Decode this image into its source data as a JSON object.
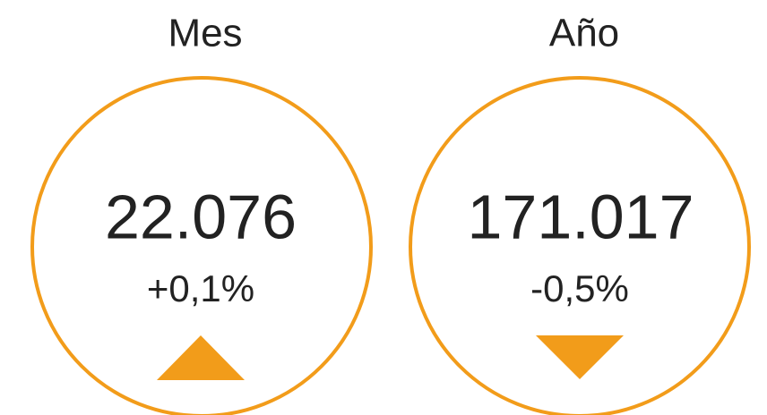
{
  "cards": [
    {
      "label": "Mes",
      "value": "22.076",
      "change": "+0,1%"
    },
    {
      "label": "Año",
      "value": "171.017",
      "change": "-0,5%"
    }
  ]
}
